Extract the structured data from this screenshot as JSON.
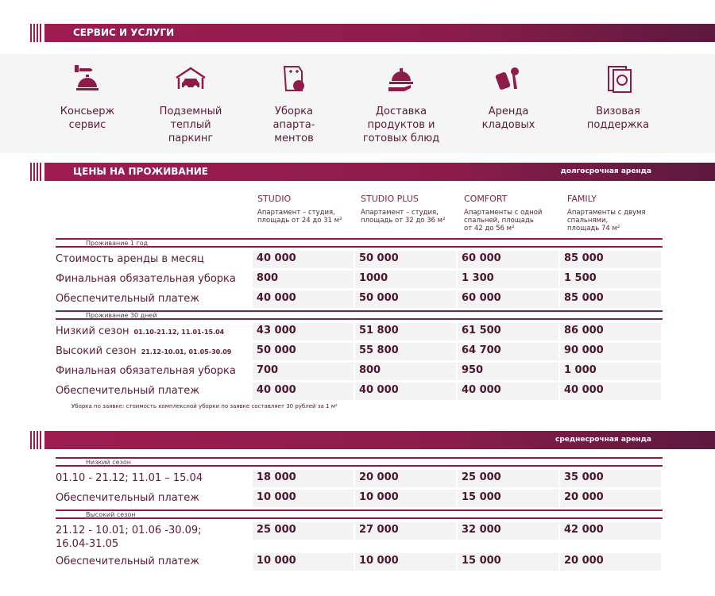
{
  "services_banner": {
    "title": "СЕРВИС И УСЛУГИ"
  },
  "services": [
    {
      "label": "Консьерж\nсервис",
      "icon": "concierge-bell-icon"
    },
    {
      "label": "Подземный\nтеплый\nпаркинг",
      "icon": "garage-car-icon"
    },
    {
      "label": "Уборка\nапарта-\nментов",
      "icon": "cleaning-icon"
    },
    {
      "label": "Доставка\nпродуктов и\nготовых блюд",
      "icon": "food-delivery-icon"
    },
    {
      "label": "Аренда\nкладовых",
      "icon": "storage-key-icon"
    },
    {
      "label": "Визовая\nподдержка",
      "icon": "passport-icon"
    }
  ],
  "prices_banner": {
    "title": "ЦЕНЫ НА ПРОЖИВАНИЕ",
    "subtitle": "долгосрочная аренда"
  },
  "mid_banner": {
    "subtitle": "среднесрочная аренда"
  },
  "columns": [
    {
      "name": "STUDIO",
      "desc": "Апартамент – студия,\nплощадь от 24 до 31 м²"
    },
    {
      "name": "STUDIO PLUS",
      "desc": "Апартамент – студия,\nплощадь от 32 до 36 м²"
    },
    {
      "name": "COMFORT",
      "desc": "Апартаменты с одной\nспальней, площадь\nот 42 до 56 м²"
    },
    {
      "name": "FAMILY",
      "desc": "Апартаменты с двумя\nспальнями,\nплощадь 74 м²"
    }
  ],
  "long_term": [
    {
      "group": "Проживание 1 год",
      "rows": [
        {
          "label": "Стоимость аренды в месяц",
          "values": [
            "40 000",
            "50 000",
            "60 000",
            "85 000"
          ]
        },
        {
          "label": "Финальная обязательная уборка",
          "values": [
            "800",
            "1000",
            "1 300",
            "1 500"
          ]
        },
        {
          "label": "Обеспечительный платеж",
          "values": [
            "40 000",
            "50 000",
            "60 000",
            "85 000"
          ]
        }
      ]
    },
    {
      "group": "Проживание 30 дней",
      "rows": [
        {
          "label": "Низкий сезон",
          "dates": "01.10-21.12, 11.01-15.04",
          "values": [
            "43 000",
            "51 800",
            "61 500",
            "86 000"
          ]
        },
        {
          "label": "Высокий сезон",
          "dates": "21.12-10.01, 01.05-30.09",
          "values": [
            "50 000",
            "55 800",
            "64 700",
            "90 000"
          ]
        },
        {
          "label": "Финальная обязательная уборка",
          "values": [
            "700",
            "800",
            "950",
            "1 000"
          ]
        },
        {
          "label": "Обеспечительный платеж",
          "values": [
            "40 000",
            "40 000",
            "40 000",
            "40 000"
          ]
        }
      ]
    }
  ],
  "note": "Уборка по заявке:  стоимость комплексной уборки по заявке составляет 30 рублей за 1 м²",
  "mid_term": [
    {
      "group": "Низкий сезон",
      "rows": [
        {
          "label": "01.10 - 21.12; 11.01 – 15.04",
          "values": [
            "18 000",
            "20 000",
            "25 000",
            "35 000"
          ]
        },
        {
          "label": "Обеспечительный платеж",
          "values": [
            "10 000",
            "10 000",
            "15 000",
            "20 000"
          ]
        }
      ]
    },
    {
      "group": "Высокий сезон",
      "rows": [
        {
          "label": "21.12 - 10.01;  01.06 -30.09;\n16.04-31.05",
          "values": [
            "25 000",
            "27 000",
            "32 000",
            "42 000"
          ]
        },
        {
          "label": "Обеспечительный платеж",
          "values": [
            "10 000",
            "10 000",
            "15 000",
            "20 000"
          ]
        }
      ]
    }
  ],
  "colors": {
    "accent": "#9b1b4e",
    "dark": "#5c1a3e",
    "text": "#5a1a3a"
  }
}
